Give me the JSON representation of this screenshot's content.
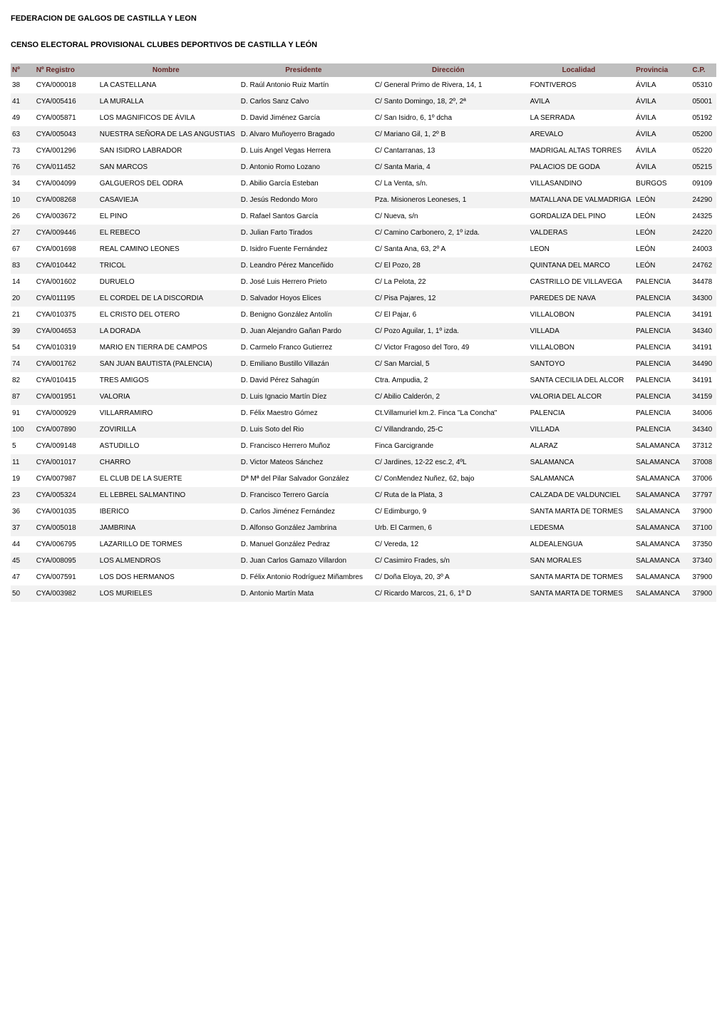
{
  "header": {
    "title": "FEDERACION DE GALGOS DE CASTILLA Y LEON",
    "subtitle": "CENSO ELECTORAL PROVISIONAL CLUBES DEPORTIVOS DE CASTILLA Y LEÓN"
  },
  "table": {
    "type": "table",
    "background_color": "#ffffff",
    "header_bg": "#bfbfbf",
    "header_text_color": "#632423",
    "row_alt_bg": "#f2f2f2",
    "text_color": "#000000",
    "fontsize": 10,
    "columns": [
      {
        "key": "seq",
        "label": "Nº",
        "width": "3%"
      },
      {
        "key": "registro",
        "label": "Nº Registro",
        "width": "9%"
      },
      {
        "key": "nombre",
        "label": "Nombre",
        "width": "20%"
      },
      {
        "key": "presidente",
        "label": "Presidente",
        "width": "19%"
      },
      {
        "key": "direccion",
        "label": "Dirección",
        "width": "22%"
      },
      {
        "key": "localidad",
        "label": "Localidad",
        "width": "15%"
      },
      {
        "key": "provincia",
        "label": "Provincia",
        "width": "8%"
      },
      {
        "key": "cp",
        "label": "C.P.",
        "width": "4%"
      }
    ],
    "rows": [
      {
        "seq": "38",
        "registro": "CYA/000018",
        "nombre": "LA CASTELLANA",
        "presidente": "D. Raúl Antonio Ruiz Martín",
        "direccion": "C/ General Primo de Rivera, 14, 1",
        "localidad": "FONTIVEROS",
        "provincia": "ÁVILA",
        "cp": "05310"
      },
      {
        "seq": "41",
        "registro": "CYA/005416",
        "nombre": "LA MURALLA",
        "presidente": "D. Carlos Sanz Calvo",
        "direccion": "C/ Santo Domingo, 18, 2º, 2ª",
        "localidad": "AVILA",
        "provincia": "ÁVILA",
        "cp": "05001"
      },
      {
        "seq": "49",
        "registro": "CYA/005871",
        "nombre": "LOS MAGNIFICOS DE ÁVILA",
        "presidente": "D. David Jiménez García",
        "direccion": "C/ San Isidro, 6, 1º dcha",
        "localidad": "LA SERRADA",
        "provincia": "ÁVILA",
        "cp": "05192"
      },
      {
        "seq": "63",
        "registro": "CYA/005043",
        "nombre": "NUESTRA SEÑORA DE LAS ANGUSTIAS",
        "presidente": "D. Alvaro Muñoyerro Bragado",
        "direccion": "C/ Mariano Gil, 1, 2º B",
        "localidad": "AREVALO",
        "provincia": "ÁVILA",
        "cp": "05200"
      },
      {
        "seq": "73",
        "registro": "CYA/001296",
        "nombre": "SAN ISIDRO LABRADOR",
        "presidente": "D. Luis Angel Vegas Herrera",
        "direccion": "C/ Cantarranas, 13",
        "localidad": "MADRIGAL ALTAS TORRES",
        "provincia": "ÁVILA",
        "cp": "05220"
      },
      {
        "seq": "76",
        "registro": "CYA/011452",
        "nombre": "SAN MARCOS",
        "presidente": "D. Antonio Romo Lozano",
        "direccion": "C/ Santa Maria, 4",
        "localidad": "PALACIOS DE GODA",
        "provincia": "ÁVILA",
        "cp": "05215"
      },
      {
        "seq": "34",
        "registro": "CYA/004099",
        "nombre": "GALGUEROS DEL ODRA",
        "presidente": "D. Abilio García Esteban",
        "direccion": "C/ La Venta, s/n.",
        "localidad": "VILLASANDINO",
        "provincia": "BURGOS",
        "cp": "09109"
      },
      {
        "seq": "10",
        "registro": "CYA/008268",
        "nombre": "CASAVIEJA",
        "presidente": "D. Jesús Redondo Moro",
        "direccion": "Pza. Misioneros Leoneses, 1",
        "localidad": "MATALLANA DE VALMADRIGAL",
        "provincia": "LEÓN",
        "cp": "24290"
      },
      {
        "seq": "26",
        "registro": "CYA/003672",
        "nombre": "EL PINO",
        "presidente": "D. Rafael Santos García",
        "direccion": "C/ Nueva, s/n",
        "localidad": "GORDALIZA DEL PINO",
        "provincia": "LEÓN",
        "cp": "24325"
      },
      {
        "seq": "27",
        "registro": "CYA/009446",
        "nombre": "EL REBECO",
        "presidente": "D. Julian Farto Tirados",
        "direccion": "C/ Camino Carbonero, 2, 1º izda.",
        "localidad": "VALDERAS",
        "provincia": "LEÓN",
        "cp": "24220"
      },
      {
        "seq": "67",
        "registro": "CYA/001698",
        "nombre": "REAL CAMINO LEONES",
        "presidente": "D. Isidro Fuente Fernández",
        "direccion": "C/ Santa Ana, 63, 2º A",
        "localidad": "LEON",
        "provincia": "LEÓN",
        "cp": "24003"
      },
      {
        "seq": "83",
        "registro": "CYA/010442",
        "nombre": "TRICOL",
        "presidente": "D. Leandro Pérez Manceñido",
        "direccion": "C/ El Pozo, 28",
        "localidad": "QUINTANA DEL MARCO",
        "provincia": "LEÓN",
        "cp": "24762"
      },
      {
        "seq": "14",
        "registro": "CYA/001602",
        "nombre": "DURUELO",
        "presidente": "D. José Luis Herrero Prieto",
        "direccion": "C/ La Pelota, 22",
        "localidad": "CASTRILLO DE VILLAVEGA",
        "provincia": "PALENCIA",
        "cp": "34478"
      },
      {
        "seq": "20",
        "registro": "CYA/011195",
        "nombre": "EL CORDEL DE LA DISCORDIA",
        "presidente": "D. Salvador Hoyos Elices",
        "direccion": "C/ Pisa Pajares, 12",
        "localidad": "PAREDES DE NAVA",
        "provincia": "PALENCIA",
        "cp": "34300"
      },
      {
        "seq": "21",
        "registro": "CYA/010375",
        "nombre": "EL CRISTO DEL OTERO",
        "presidente": "D. Benigno González Antolín",
        "direccion": "C/ El Pajar, 6",
        "localidad": "VILLALOBON",
        "provincia": "PALENCIA",
        "cp": "34191"
      },
      {
        "seq": "39",
        "registro": "CYA/004653",
        "nombre": "LA DORADA",
        "presidente": "D. Juan Alejandro Gañan Pardo",
        "direccion": "C/ Pozo Aguilar, 1, 1º izda.",
        "localidad": "VILLADA",
        "provincia": "PALENCIA",
        "cp": "34340"
      },
      {
        "seq": "54",
        "registro": "CYA/010319",
        "nombre": "MARIO EN TIERRA DE CAMPOS",
        "presidente": "D. Carmelo Franco Gutierrez",
        "direccion": "C/ Victor Fragoso del Toro, 49",
        "localidad": "VILLALOBON",
        "provincia": "PALENCIA",
        "cp": "34191"
      },
      {
        "seq": "74",
        "registro": "CYA/001762",
        "nombre": "SAN JUAN BAUTISTA (PALENCIA)",
        "presidente": "D. Emiliano Bustillo Villazán",
        "direccion": "C/ San Marcial, 5",
        "localidad": "SANTOYO",
        "provincia": "PALENCIA",
        "cp": "34490"
      },
      {
        "seq": "82",
        "registro": "CYA/010415",
        "nombre": "TRES AMIGOS",
        "presidente": "D. David Pérez Sahagún",
        "direccion": "Ctra. Ampudia, 2",
        "localidad": "SANTA CECILIA DEL ALCOR",
        "provincia": "PALENCIA",
        "cp": "34191"
      },
      {
        "seq": "87",
        "registro": "CYA/001951",
        "nombre": "VALORIA",
        "presidente": "D. Luis Ignacio Martín Díez",
        "direccion": "C/ Abilio Calderón, 2",
        "localidad": "VALORIA DEL ALCOR",
        "provincia": "PALENCIA",
        "cp": "34159"
      },
      {
        "seq": "91",
        "registro": "CYA/000929",
        "nombre": "VILLARRAMIRO",
        "presidente": "D. Félix Maestro Gómez",
        "direccion": "Ct.Villamuriel km.2. Finca \"La Concha\"",
        "localidad": "PALENCIA",
        "provincia": "PALENCIA",
        "cp": "34006"
      },
      {
        "seq": "100",
        "registro": "CYA/007890",
        "nombre": "ZOVIRILLA",
        "presidente": "D. Luis Soto del Rio",
        "direccion": "C/ Villandrando, 25-C",
        "localidad": "VILLADA",
        "provincia": "PALENCIA",
        "cp": "34340"
      },
      {
        "seq": "5",
        "registro": "CYA/009148",
        "nombre": "ASTUDILLO",
        "presidente": "D. Francisco Herrero Muñoz",
        "direccion": "Finca Garcigrande",
        "localidad": "ALARAZ",
        "provincia": "SALAMANCA",
        "cp": "37312"
      },
      {
        "seq": "11",
        "registro": "CYA/001017",
        "nombre": "CHARRO",
        "presidente": "D. Victor Mateos Sánchez",
        "direccion": "C/ Jardines, 12-22 esc.2, 4ºL",
        "localidad": "SALAMANCA",
        "provincia": "SALAMANCA",
        "cp": "37008"
      },
      {
        "seq": "19",
        "registro": "CYA/007987",
        "nombre": "EL CLUB DE LA SUERTE",
        "presidente": "Dª Mª del Pilar Salvador González",
        "direccion": "C/ ConMendez Nuñez, 62, bajo",
        "localidad": "SALAMANCA",
        "provincia": "SALAMANCA",
        "cp": "37006"
      },
      {
        "seq": "23",
        "registro": "CYA/005324",
        "nombre": "EL LEBREL SALMANTINO",
        "presidente": "D. Francisco Terrero García",
        "direccion": "C/ Ruta de la Plata, 3",
        "localidad": "CALZADA DE VALDUNCIEL",
        "provincia": "SALAMANCA",
        "cp": "37797"
      },
      {
        "seq": "36",
        "registro": "CYA/001035",
        "nombre": "IBERICO",
        "presidente": "D. Carlos Jiménez Fernández",
        "direccion": "C/ Edimburgo, 9",
        "localidad": "SANTA MARTA DE TORMES",
        "provincia": "SALAMANCA",
        "cp": "37900"
      },
      {
        "seq": "37",
        "registro": "CYA/005018",
        "nombre": "JAMBRINA",
        "presidente": "D. Alfonso González Jambrina",
        "direccion": "Urb. El Carmen, 6",
        "localidad": "LEDESMA",
        "provincia": "SALAMANCA",
        "cp": "37100"
      },
      {
        "seq": "44",
        "registro": "CYA/006795",
        "nombre": "LAZARILLO DE TORMES",
        "presidente": "D. Manuel González Pedraz",
        "direccion": "C/ Vereda, 12",
        "localidad": "ALDEALENGUA",
        "provincia": "SALAMANCA",
        "cp": "37350"
      },
      {
        "seq": "45",
        "registro": "CYA/008095",
        "nombre": "LOS ALMENDROS",
        "presidente": "D. Juan Carlos Gamazo Villardon",
        "direccion": "C/ Casimiro Frades, s/n",
        "localidad": "SAN MORALES",
        "provincia": "SALAMANCA",
        "cp": "37340"
      },
      {
        "seq": "47",
        "registro": "CYA/007591",
        "nombre": "LOS DOS HERMANOS",
        "presidente": "D. Félix Antonio Rodríguez Miñambres",
        "direccion": "C/ Doña Eloya, 20, 3º A",
        "localidad": "SANTA MARTA DE TORMES",
        "provincia": "SALAMANCA",
        "cp": "37900"
      },
      {
        "seq": "50",
        "registro": "CYA/003982",
        "nombre": "LOS MURIELES",
        "presidente": "D. Antonio Martín Mata",
        "direccion": "C/ Ricardo Marcos, 21, 6, 1º D",
        "localidad": "SANTA MARTA DE TORMES",
        "provincia": "SALAMANCA",
        "cp": "37900"
      }
    ]
  }
}
